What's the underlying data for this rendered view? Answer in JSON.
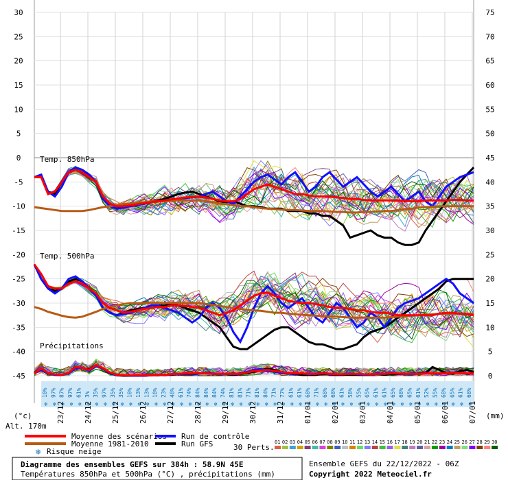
{
  "chart_data": {
    "type": "line",
    "header": {
      "temp850_label": "Temp. 850hPa",
      "temp500_label": "Temp. 500hPa",
      "precip_label": "Précipitations"
    },
    "axes": {
      "left_ticks": [
        30,
        25,
        20,
        15,
        10,
        5,
        0,
        -5,
        -10,
        -15,
        -20,
        -25,
        -30,
        -35,
        -40,
        -45
      ],
      "right_ticks": [
        75,
        70,
        65,
        60,
        55,
        50,
        45,
        40,
        35,
        30,
        25,
        20,
        15,
        10,
        5,
        0
      ],
      "left_unit": "(°c)",
      "right_unit": "(mm)",
      "altitude": "Alt. 170m",
      "temp_range": [
        -45,
        30
      ],
      "x_dates": [
        "23/12",
        "24/12",
        "25/12",
        "26/12",
        "27/12",
        "28/12",
        "29/12",
        "30/12",
        "31/12",
        "01/01",
        "02/01",
        "03/01",
        "04/01",
        "05/01",
        "06/01",
        "07/01"
      ]
    },
    "snow_risk": [
      "10%",
      "97%",
      "87%",
      "97%",
      "61%",
      "3%",
      "35%",
      "97%",
      "35%",
      "35%",
      "10%",
      "13%",
      "13%",
      "10%",
      "23%",
      "48%",
      "61%",
      "74%",
      "84%",
      "84%",
      "84%",
      "74%",
      "81%",
      "81%",
      "71%",
      "81%",
      "84%",
      "71%",
      "77%",
      "61%",
      "61%",
      "68%",
      "71%",
      "68%",
      "68%",
      "61%",
      "58%",
      "55%",
      "65%",
      "61%",
      "61%",
      "65%",
      "68%",
      "65%",
      "61%",
      "52%",
      "55%",
      "68%",
      "65%",
      "61%",
      "68%"
    ],
    "series": [
      {
        "name": "Moyenne des scénarios",
        "color": "#ff0000",
        "t850": [
          -4,
          -4,
          -7.5,
          -7,
          -5,
          -3,
          -2.5,
          -3,
          -4,
          -5,
          -8,
          -9.5,
          -10,
          -10,
          -9.8,
          -9.6,
          -9.4,
          -9.2,
          -9,
          -8.8,
          -8.6,
          -8.4,
          -8.2,
          -8.1,
          -8,
          -8.2,
          -8.5,
          -8.8,
          -9,
          -9,
          -8.5,
          -7.5,
          -6.5,
          -6,
          -5.5,
          -6,
          -6.5,
          -7,
          -7.5,
          -7.5,
          -7.8,
          -8,
          -8,
          -8,
          -8.2,
          -8.3,
          -8.5,
          -8.5,
          -8.7,
          -8.8,
          -8.8,
          -8.8,
          -8.8,
          -8.8,
          -8.9,
          -9,
          -9,
          -8.8,
          -8.8,
          -8.8,
          -8.8,
          -8.7,
          -8.7,
          -8.8,
          -8.8
        ],
        "t500": [
          -22,
          -24,
          -26.5,
          -27,
          -27,
          -26,
          -25.5,
          -26,
          -27,
          -28,
          -30,
          -31,
          -31.5,
          -32,
          -31.8,
          -31.5,
          -31.2,
          -31,
          -30.8,
          -30.8,
          -30.5,
          -30.5,
          -30.6,
          -30.8,
          -31,
          -31.5,
          -32,
          -32.5,
          -32,
          -31.5,
          -30.5,
          -29.5,
          -28.5,
          -28,
          -27.8,
          -28.5,
          -29,
          -29.5,
          -29.8,
          -30,
          -30,
          -30.2,
          -30.5,
          -30.8,
          -31,
          -31,
          -31.2,
          -31.5,
          -31.5,
          -31.8,
          -32,
          -32,
          -32.2,
          -32.5,
          -32.5,
          -32.5,
          -32.5,
          -32.5,
          -32.5,
          -32.2,
          -32,
          -32,
          -32.2,
          -32.3,
          -32.5
        ],
        "precip": [
          0.5,
          1.5,
          0.6,
          0.3,
          0.2,
          0.6,
          1.8,
          1.6,
          1.2,
          2.2,
          1.6,
          0.7,
          0.2,
          0.1,
          0.1,
          0.1,
          0.1,
          0.1,
          0.2,
          0.2,
          0.3,
          0.4,
          0.5,
          0.5,
          0.6,
          0.5,
          0.4,
          0.4,
          0.4,
          0.4,
          0.4,
          0.7,
          1.0,
          1.1,
          1.2,
          1.0,
          0.8,
          0.6,
          0.5,
          0.5,
          0.4,
          0.4,
          0.5,
          0.4,
          0.3,
          0.3,
          0.4,
          0.4,
          0.3,
          0.3,
          0.4,
          0.4,
          0.5,
          0.5,
          0.4,
          0.4,
          0.4,
          0.5,
          0.5,
          0.5,
          0.5,
          0.6,
          0.6,
          0.5,
          0.5
        ]
      },
      {
        "name": "Moyenne 1981-2010",
        "color": "#b85a14",
        "t850": [
          -10.2,
          -10.4,
          -10.6,
          -10.8,
          -11,
          -11,
          -11,
          -11,
          -10.8,
          -10.5,
          -10.2,
          -10,
          -9.8,
          -9.5,
          -9.5,
          -9.3,
          -9.2,
          -9,
          -9,
          -9,
          -8.9,
          -8.8,
          -8.8,
          -8.8,
          -8.8,
          -9,
          -9.2,
          -9.5,
          -9.6,
          -9.8,
          -10,
          -10,
          -10.2,
          -10.4,
          -10.5,
          -10.6,
          -10.7,
          -10.8,
          -10.8,
          -10.9,
          -11,
          -11,
          -11,
          -11.1,
          -11.2,
          -11.2,
          -11.3,
          -11.3,
          -11.2,
          -11.2,
          -11.1,
          -11,
          -11,
          -10.8,
          -10.6,
          -10.5,
          -10.3,
          -10.2,
          -10.1,
          -10,
          -10,
          -10,
          -10,
          -10,
          -10
        ],
        "t500": [
          -30.8,
          -31.2,
          -31.8,
          -32.2,
          -32.6,
          -32.9,
          -33,
          -32.8,
          -32.3,
          -31.8,
          -31.2,
          -30.8,
          -30.5,
          -30.2,
          -30,
          -30,
          -30,
          -30,
          -30,
          -30,
          -30,
          -30,
          -30,
          -30,
          -30,
          -30.2,
          -30.4,
          -30.6,
          -30.8,
          -31,
          -31.2,
          -31.4,
          -31.5,
          -31.6,
          -31.8,
          -32,
          -32,
          -32.2,
          -32.3,
          -32.4,
          -32.5,
          -32.6,
          -32.7,
          -32.8,
          -32.8,
          -32.9,
          -33,
          -33,
          -33,
          -33,
          -33,
          -33,
          -32.9,
          -32.8,
          -32.7,
          -32.6,
          -32.5,
          -32.4,
          -32.3,
          -32.2,
          -32.2,
          -32.2,
          -32.2,
          -32.2,
          -32.2
        ]
      },
      {
        "name": "Run de contrôle",
        "color": "#1010ff",
        "t850": [
          -4,
          -3.5,
          -7,
          -8,
          -6,
          -3,
          -2,
          -2.5,
          -3.5,
          -5,
          -8.5,
          -10,
          -10.5,
          -10.3,
          -10,
          -9.8,
          -9.5,
          -9.2,
          -9,
          -8.8,
          -8.6,
          -8.5,
          -8.3,
          -8.2,
          -8,
          -7.5,
          -7,
          -8,
          -9,
          -9.5,
          -8,
          -6.5,
          -5,
          -4,
          -3.5,
          -4.5,
          -5.5,
          -4,
          -3,
          -5,
          -7,
          -6,
          -4,
          -3,
          -4.5,
          -6,
          -5,
          -4,
          -5.5,
          -7,
          -8,
          -7,
          -6,
          -7.5,
          -9,
          -8,
          -7,
          -9,
          -10,
          -8,
          -6,
          -5,
          -4,
          -3.5,
          -3
        ],
        "t500": [
          -22,
          -25,
          -27,
          -28,
          -27,
          -25,
          -24.5,
          -25.5,
          -27,
          -28.5,
          -31,
          -32,
          -32.5,
          -32.3,
          -32,
          -31.5,
          -31,
          -30.5,
          -30.5,
          -31,
          -31.5,
          -32,
          -33,
          -34,
          -33,
          -31,
          -30,
          -31,
          -33,
          -36,
          -38,
          -35,
          -31,
          -28,
          -26.5,
          -28,
          -30,
          -31,
          -30,
          -29,
          -31,
          -33,
          -34,
          -32,
          -30,
          -31,
          -33,
          -35,
          -34,
          -32,
          -33,
          -35,
          -33,
          -31,
          -30,
          -29.5,
          -29,
          -28,
          -27,
          -26,
          -25,
          -26,
          -28,
          -29,
          -30
        ],
        "precip": [
          0.5,
          1.2,
          0.5,
          0.2,
          0.2,
          0.5,
          1.5,
          1.6,
          1.0,
          2.0,
          1.5,
          0.6,
          0.1,
          0.1,
          0,
          0,
          0,
          0.1,
          0.2,
          0.1,
          0.3,
          0.3,
          0.4,
          0.4,
          0.5,
          0.6,
          0.5,
          0.3,
          0.4,
          0.3,
          0.5,
          0.8,
          1.2,
          1.4,
          1.0,
          0.8,
          0.6,
          0.5,
          0.4,
          0.5,
          0.3,
          0.4,
          0.6,
          0.4,
          0.3,
          0.3,
          0.5,
          0.3,
          0.2,
          0.3,
          0.5,
          0.4,
          0.6,
          0.4,
          0.3,
          0.5,
          0.4,
          0.6,
          0.5,
          0.4,
          0.5,
          0.7,
          0.6,
          0.4,
          0.5
        ]
      },
      {
        "name": "Run GFS",
        "color": "#000000",
        "t850": [
          -4,
          -4,
          -7,
          -7.5,
          -5,
          -3,
          -2.5,
          -3,
          -4,
          -5,
          -8.5,
          -10,
          -10.5,
          -10,
          -9.8,
          -9.5,
          -9.2,
          -9,
          -8.8,
          -8.5,
          -8,
          -7.5,
          -7.2,
          -7,
          -7.5,
          -8,
          -8.5,
          -9,
          -9.2,
          -9,
          -9.5,
          -10,
          -10,
          -10.2,
          -10.5,
          -10.5,
          -10.5,
          -11,
          -11,
          -11,
          -11.5,
          -11.5,
          -12,
          -12,
          -13,
          -14,
          -16.5,
          -16,
          -15.5,
          -15,
          -16,
          -16.5,
          -16.5,
          -17.5,
          -18,
          -18,
          -17.5,
          -15,
          -13,
          -11,
          -9,
          -7,
          -5,
          -3.5,
          -2
        ],
        "t500": [
          -22,
          -25,
          -27,
          -27.5,
          -27,
          -25.5,
          -25,
          -25.5,
          -27,
          -28.5,
          -31,
          -32,
          -32.5,
          -32,
          -31.5,
          -31.2,
          -31,
          -30.5,
          -30.5,
          -30.5,
          -30.2,
          -30.5,
          -31,
          -31.5,
          -32,
          -33,
          -34,
          -35,
          -37,
          -39,
          -39.5,
          -39.5,
          -38.5,
          -37.5,
          -36.5,
          -35.5,
          -35,
          -35,
          -36,
          -37,
          -38,
          -38.5,
          -38.5,
          -39,
          -39.5,
          -39.5,
          -39,
          -38.5,
          -37,
          -36,
          -35.5,
          -35,
          -34,
          -33,
          -32,
          -31,
          -30,
          -29,
          -28,
          -27,
          -25.5,
          -25,
          -25,
          -25,
          -25
        ],
        "precip": [
          0.6,
          1.4,
          0.5,
          0.2,
          0.2,
          0.6,
          1.5,
          1.6,
          1.3,
          2.2,
          1.5,
          0.5,
          0.1,
          0,
          0,
          0,
          0,
          0.1,
          0.1,
          0.2,
          0.2,
          0.3,
          0.3,
          0.3,
          0.5,
          0.6,
          0.4,
          0.3,
          0.3,
          0.2,
          0.3,
          0.6,
          0.8,
          1.2,
          1.5,
          1.2,
          0.8,
          0.5,
          0.3,
          0.2,
          0.2,
          0.2,
          0.3,
          0.3,
          0.2,
          0.2,
          0.2,
          0.2,
          0.2,
          0.3,
          0.3,
          0.2,
          0.3,
          0.4,
          0.3,
          0.3,
          0.5,
          0.6,
          1.8,
          1.2,
          0.5,
          0.4,
          1.0,
          1.2,
          0.8
        ]
      }
    ],
    "perturbations": {
      "label": "30 Perts.",
      "codes": [
        "01",
        "02",
        "03",
        "04",
        "05",
        "06",
        "07",
        "08",
        "09",
        "10",
        "11",
        "12",
        "13",
        "14",
        "15",
        "16",
        "17",
        "18",
        "19",
        "20",
        "21",
        "22",
        "23",
        "24",
        "25",
        "26",
        "27",
        "28",
        "29",
        "30"
      ],
      "colors": [
        "#e06040",
        "#a0c040",
        "#40a0e0",
        "#d0a000",
        "#804080",
        "#40c0a0",
        "#e040e0",
        "#808000",
        "#4060c0",
        "#c0c0c0",
        "#e08000",
        "#60e060",
        "#8080ff",
        "#c04040",
        "#40c040",
        "#a060e0",
        "#e0e040",
        "#408080",
        "#c080c0",
        "#6060a0",
        "#e0a0a0",
        "#00a000",
        "#a000a0",
        "#0080c0",
        "#c0a060",
        "#80e080",
        "#8000ff",
        "#804000",
        "#ff8080",
        "#006000"
      ]
    },
    "legend": {
      "moyenne_scenarios": "Moyenne des scénarios",
      "moyenne_1981": "Moyenne 1981-2010",
      "risque_neige": "Risque neige",
      "run_controle": "Run de contrôle",
      "run_gfs": "Run GFS"
    },
    "footer": {
      "title": "Diagramme des ensembles GEFS sur 384h : 58.9N 45E",
      "subtitle": "Températures 850hPa et 500hPa (°C) , précipitations (mm)",
      "ensemble": "Ensemble GEFS du 22/12/2022 - 06Z",
      "copyright": "Copyright 2022 Meteociel.fr"
    }
  }
}
